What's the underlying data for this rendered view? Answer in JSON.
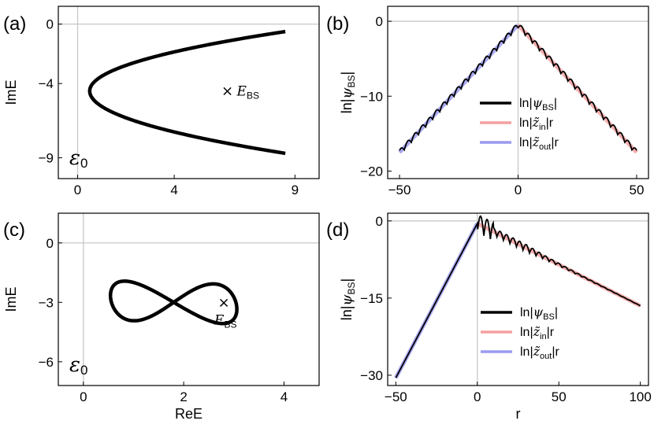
{
  "chart_data": [
    {
      "panel": "(a)",
      "type": "line",
      "xlabel": "",
      "ylabel": "ImE",
      "xlim": [
        -0.8,
        10.0
      ],
      "ylim": [
        -10.4,
        1.2
      ],
      "xticks": [
        0,
        4,
        9
      ],
      "yticks": [
        0,
        -4,
        -9
      ],
      "xtick_labels": [
        "0",
        "4",
        "9"
      ],
      "ytick_labels": [
        "0",
        "−4",
        "−9"
      ],
      "series": [
        {
          "name": "spectrum",
          "color": "#000000",
          "x_min": 0.5,
          "x_max": 8.6,
          "y_vertex": -4.5,
          "y_top_end": -0.5,
          "y_bottom_end": -8.7
        }
      ],
      "marker": {
        "x": 6.2,
        "y": -4.5,
        "symbol": "×",
        "label_main": "E",
        "label_sub": "BS"
      },
      "inset_label": {
        "main": "ε",
        "sub": "0"
      }
    },
    {
      "panel": "(b)",
      "type": "line",
      "xlabel": "",
      "ylabel": "ln|ψBS|",
      "xlim": [
        -55,
        55
      ],
      "ylim": [
        -21,
        2
      ],
      "xticks": [
        -50,
        0,
        50
      ],
      "yticks": [
        0,
        -10,
        -20
      ],
      "xtick_labels": [
        "−50",
        "0",
        "50"
      ],
      "ytick_labels": [
        "0",
        "−10",
        "−20"
      ],
      "series": [
        {
          "name": "ln|ψBS|",
          "color": "#000000",
          "slope_left": 0.34,
          "slope_right": 0.34,
          "peak": -0.5,
          "oscillation": 1.0,
          "period": 3
        },
        {
          "name": "ln|z̃in|r",
          "color": "#f4a0a0",
          "slope_right": 0.34,
          "peak": -0.5
        },
        {
          "name": "ln|z̃out|r",
          "color": "#9b9bf0",
          "slope_left": 0.34,
          "peak": -0.5
        }
      ],
      "legend": [
        {
          "prefix": "ln|",
          "sym": "ψ",
          "sub": "BS",
          "suffix": "|",
          "color": "#000000"
        },
        {
          "prefix": "ln|",
          "sym": "z̃",
          "sub": "in",
          "suffix": "|r",
          "color": "#f4a0a0"
        },
        {
          "prefix": "ln|",
          "sym": "z̃",
          "sub": "out",
          "suffix": "|r",
          "color": "#9b9bf0"
        }
      ]
    },
    {
      "panel": "(c)",
      "type": "line",
      "xlabel": "ReE",
      "ylabel": "ImE",
      "xlim": [
        -0.5,
        4.7
      ],
      "ylim": [
        -7.2,
        1.5
      ],
      "xticks": [
        0,
        2,
        4
      ],
      "yticks": [
        0,
        -3,
        -6
      ],
      "xtick_labels": [
        "0",
        "2",
        "4"
      ],
      "ytick_labels": [
        "0",
        "−3",
        "−6"
      ],
      "series": [
        {
          "name": "figure-eight spectrum",
          "color": "#000000",
          "center_x": 1.8,
          "center_y": -3.0
        }
      ],
      "marker": {
        "x": 2.8,
        "y": -3.0,
        "symbol": "×",
        "label_main": "E",
        "label_sub": "BS"
      },
      "inset_label": {
        "main": "ε",
        "sub": "0"
      }
    },
    {
      "panel": "(d)",
      "type": "line",
      "xlabel": "r",
      "ylabel": "ln|ψBS|",
      "xlim": [
        -55,
        105
      ],
      "ylim": [
        -32,
        1.5
      ],
      "xticks": [
        -50,
        0,
        50,
        100
      ],
      "yticks": [
        0,
        -15,
        -30
      ],
      "xtick_labels": [
        "−50",
        "0",
        "50",
        "100"
      ],
      "ytick_labels": [
        "0",
        "−15",
        "−30"
      ],
      "series": [
        {
          "name": "ln|ψBS|",
          "color": "#000000",
          "slope_left": 0.6,
          "slope_right": 0.16,
          "peak": -0.5,
          "oscillation": 1.4,
          "period": 4
        },
        {
          "name": "ln|z̃in|r",
          "color": "#f4a0a0",
          "slope_right": 0.16,
          "peak": -0.5
        },
        {
          "name": "ln|z̃out|r",
          "color": "#9b9bf0",
          "slope_left": 0.6,
          "peak": -0.5
        }
      ],
      "legend": [
        {
          "prefix": "ln|",
          "sym": "ψ",
          "sub": "BS",
          "suffix": "|",
          "color": "#000000"
        },
        {
          "prefix": "ln|",
          "sym": "z̃",
          "sub": "in",
          "suffix": "|r",
          "color": "#f4a0a0"
        },
        {
          "prefix": "ln|",
          "sym": "z̃",
          "sub": "out",
          "suffix": "|r",
          "color": "#9b9bf0"
        }
      ]
    }
  ]
}
